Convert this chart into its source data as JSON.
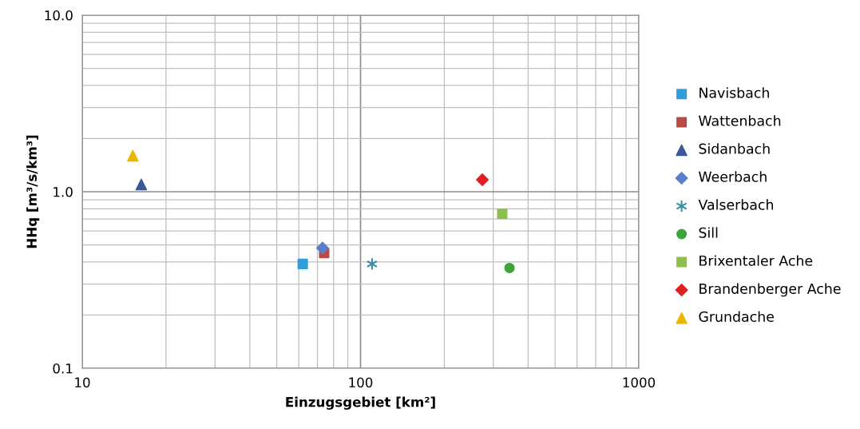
{
  "chart_data": {
    "type": "scatter",
    "xlabel": "Einzugsgebiet [km²]",
    "ylabel": "HHq [m³/s/km³]",
    "log": "xy",
    "grid": true,
    "legend": "right",
    "xlim": [
      10,
      1000
    ],
    "xticks": [
      10,
      100,
      1000
    ],
    "ylim": [
      0.1,
      10
    ],
    "yticks": [
      {
        "value": 0.1,
        "label": "0.1"
      },
      {
        "value": 1,
        "label": "1.0"
      },
      {
        "value": 10,
        "label": "10.0"
      }
    ],
    "series": [
      {
        "name": "Navisbach",
        "color": "#2e9fdc",
        "marker": "square",
        "x": [
          62
        ],
        "values": [
          0.39
        ]
      },
      {
        "name": "Wattenbach",
        "color": "#b94a48",
        "marker": "square",
        "x": [
          74
        ],
        "values": [
          0.45
        ]
      },
      {
        "name": "Sidanbach",
        "color": "#3b5998",
        "marker": "triangle",
        "x": [
          16.3
        ],
        "values": [
          1.1
        ]
      },
      {
        "name": "Weerbach",
        "color": "#5b7fc7",
        "marker": "diamond",
        "x": [
          73
        ],
        "values": [
          0.48
        ]
      },
      {
        "name": "Valserbach",
        "color": "#3a8fa8",
        "marker": "cross",
        "x": [
          110
        ],
        "values": [
          0.39
        ]
      },
      {
        "name": "Sill",
        "color": "#3aa53a",
        "marker": "circle",
        "x": [
          343
        ],
        "values": [
          0.37
        ]
      },
      {
        "name": "Brixentaler Ache",
        "color": "#8dc04a",
        "marker": "square",
        "x": [
          323
        ],
        "values": [
          0.75
        ]
      },
      {
        "name": "Brandenberger Ache",
        "color": "#e02020",
        "marker": "diamond",
        "x": [
          274
        ],
        "values": [
          1.17
        ]
      },
      {
        "name": "Grundache",
        "color": "#e8b800",
        "marker": "triangle",
        "x": [
          15.2
        ],
        "values": [
          1.6
        ]
      }
    ]
  }
}
